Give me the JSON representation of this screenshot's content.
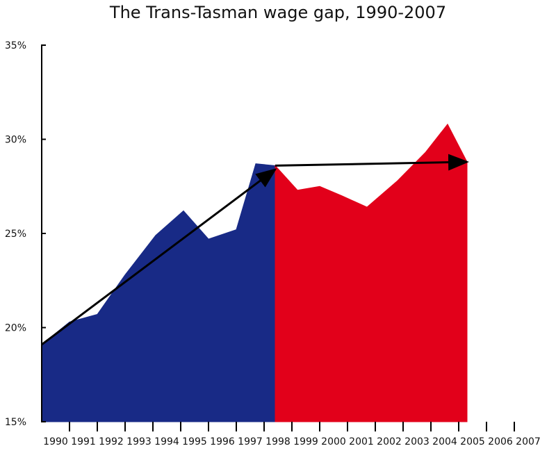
{
  "chart_data": {
    "type": "area",
    "title": "The Trans-Tasman wage gap, 1990-2007",
    "xlabel": "",
    "ylabel": "",
    "ylim": [
      15,
      35
    ],
    "y_ticks": [
      "15%",
      "20%",
      "25%",
      "30%",
      "35%"
    ],
    "y_tick_values": [
      15,
      20,
      25,
      30,
      35
    ],
    "categories": [
      "1990",
      "1991",
      "1992",
      "1993",
      "1994",
      "1995",
      "1996",
      "1997",
      "1998",
      "1999",
      "2000",
      "2001",
      "2002",
      "2003",
      "2004",
      "2005",
      "2006",
      "2007"
    ],
    "grid": false,
    "legend": "none",
    "series": [
      {
        "color": "#182a86",
        "points": [
          {
            "x": 1990.0,
            "y": 19.1
          },
          {
            "x": 1991.0,
            "y": 20.3
          },
          {
            "x": 1992.0,
            "y": 20.7
          },
          {
            "x": 1993.0,
            "y": 22.8
          },
          {
            "x": 1994.1,
            "y": 24.9
          },
          {
            "x": 1995.1,
            "y": 26.2
          },
          {
            "x": 1996.0,
            "y": 24.7
          },
          {
            "x": 1997.0,
            "y": 25.2
          },
          {
            "x": 1997.7,
            "y": 28.7
          },
          {
            "x": 1998.4,
            "y": 28.6
          }
        ]
      },
      {
        "color": "#e2001a",
        "points": [
          {
            "x": 1998.4,
            "y": 28.6
          },
          {
            "x": 1999.2,
            "y": 27.3
          },
          {
            "x": 2000.0,
            "y": 27.5
          },
          {
            "x": 2000.8,
            "y": 27.0
          },
          {
            "x": 2001.7,
            "y": 26.4
          },
          {
            "x": 2002.8,
            "y": 27.8
          },
          {
            "x": 2003.8,
            "y": 29.3
          },
          {
            "x": 2004.6,
            "y": 30.8
          },
          {
            "x": 2005.3,
            "y": 28.8
          }
        ]
      }
    ],
    "annotations": [
      {
        "type": "arrow",
        "color": "#000000",
        "from": {
          "x": 1990.0,
          "y": 19.1
        },
        "to": {
          "x": 1998.4,
          "y": 28.4
        }
      },
      {
        "type": "arrow",
        "color": "#000000",
        "from": {
          "x": 1998.4,
          "y": 28.6
        },
        "to": {
          "x": 2005.3,
          "y": 28.8
        }
      }
    ]
  }
}
